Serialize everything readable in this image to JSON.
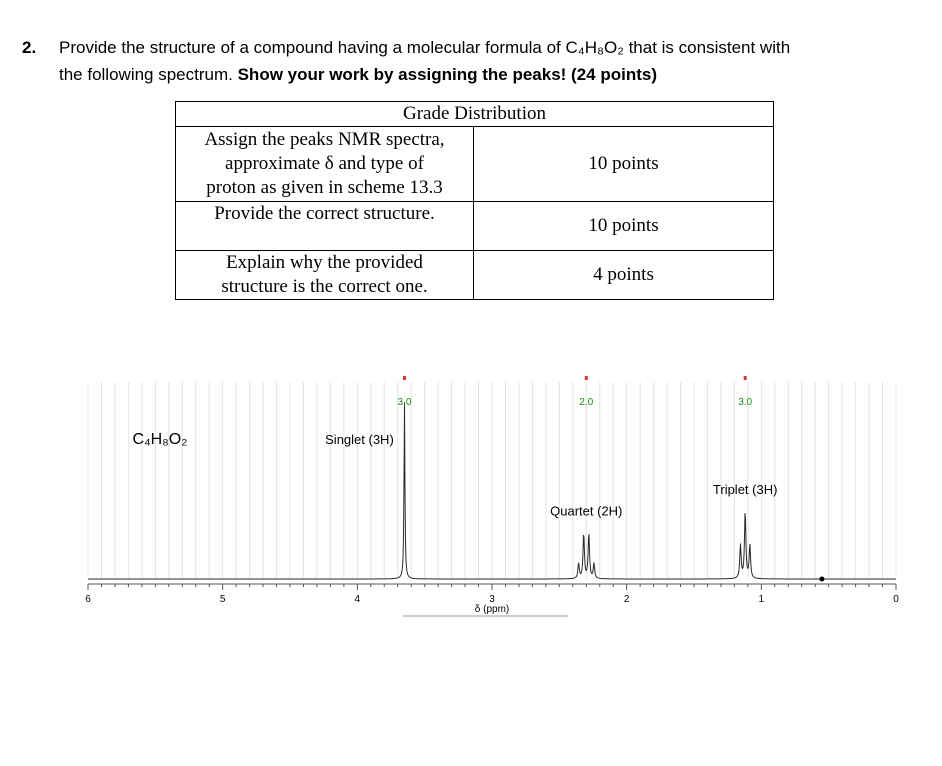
{
  "question": {
    "number": "2.",
    "line1": "Provide the structure of a compound having a molecular formula of C₄H₈O₂ that is consistent with",
    "line2_plain": "the following spectrum. ",
    "line2_bold": "Show your work by assigning the peaks! (24 points)"
  },
  "grade_table": {
    "title": "Grade Distribution",
    "rows": [
      {
        "item_lines": [
          "Assign the peaks NMR spectra,",
          "approximate δ and type of",
          "proton as given in scheme 13.3"
        ],
        "points": "10 points"
      },
      {
        "item_lines": [
          "Provide the correct structure."
        ],
        "points": "10 points"
      },
      {
        "item_lines": [
          "Explain why the provided",
          "structure is the correct one."
        ],
        "points": "4 points"
      }
    ]
  },
  "chart_data": {
    "type": "line",
    "title": "",
    "xlabel": "δ (ppm)",
    "ylabel": "",
    "xlim": [
      6,
      0
    ],
    "x_ticks": [
      "6",
      "5",
      "4",
      "3",
      "2",
      "1",
      "0"
    ],
    "formula_label": "C₄H₈O₂",
    "peaks": [
      {
        "shift": 3.65,
        "multiplicity": "Singlet (3H)",
        "integration": "3.0",
        "relative_height": 0.9
      },
      {
        "shift": 2.3,
        "multiplicity": "Quartet (2H)",
        "integration": "2.0",
        "relative_height": 0.23
      },
      {
        "shift": 1.12,
        "multiplicity": "Triplet (3H)",
        "integration": "3.0",
        "relative_height": 0.34
      }
    ],
    "grid": true
  }
}
